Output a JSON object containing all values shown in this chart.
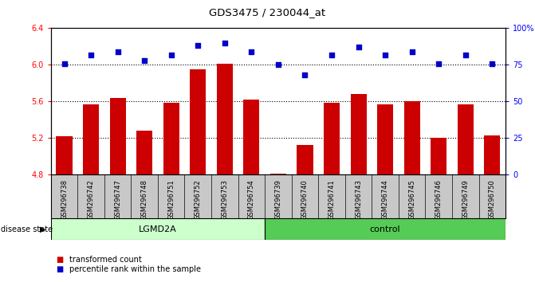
{
  "title": "GDS3475 / 230044_at",
  "samples": [
    "GSM296738",
    "GSM296742",
    "GSM296747",
    "GSM296748",
    "GSM296751",
    "GSM296752",
    "GSM296753",
    "GSM296754",
    "GSM296739",
    "GSM296740",
    "GSM296741",
    "GSM296743",
    "GSM296744",
    "GSM296745",
    "GSM296746",
    "GSM296749",
    "GSM296750"
  ],
  "bar_values": [
    5.22,
    5.57,
    5.64,
    5.28,
    5.59,
    5.95,
    6.01,
    5.62,
    4.81,
    5.13,
    5.59,
    5.68,
    5.57,
    5.6,
    5.2,
    5.57,
    5.23
  ],
  "dot_values": [
    76,
    82,
    84,
    78,
    82,
    88,
    90,
    84,
    75,
    68,
    82,
    87,
    82,
    84,
    76,
    82,
    76
  ],
  "groups": [
    {
      "label": "LGMD2A",
      "start": 0,
      "end": 8,
      "color": "#ccffcc"
    },
    {
      "label": "control",
      "start": 8,
      "end": 17,
      "color": "#55cc55"
    }
  ],
  "bar_color": "#cc0000",
  "dot_color": "#0000cc",
  "ylim_left": [
    4.8,
    6.4
  ],
  "ylim_right": [
    0,
    100
  ],
  "yticks_left": [
    4.8,
    5.2,
    5.6,
    6.0,
    6.4
  ],
  "yticks_right": [
    0,
    25,
    50,
    75,
    100
  ],
  "yticklabels_right": [
    "0",
    "25",
    "50",
    "75",
    "100%"
  ],
  "hlines": [
    6.0,
    5.6,
    5.2
  ],
  "disease_state_label": "disease state",
  "legend_bar_label": "transformed count",
  "legend_dot_label": "percentile rank within the sample",
  "sample_bg_color": "#c8c8c8",
  "plot_bg": "#ffffff",
  "n_lgmd": 8,
  "n_ctrl": 9
}
